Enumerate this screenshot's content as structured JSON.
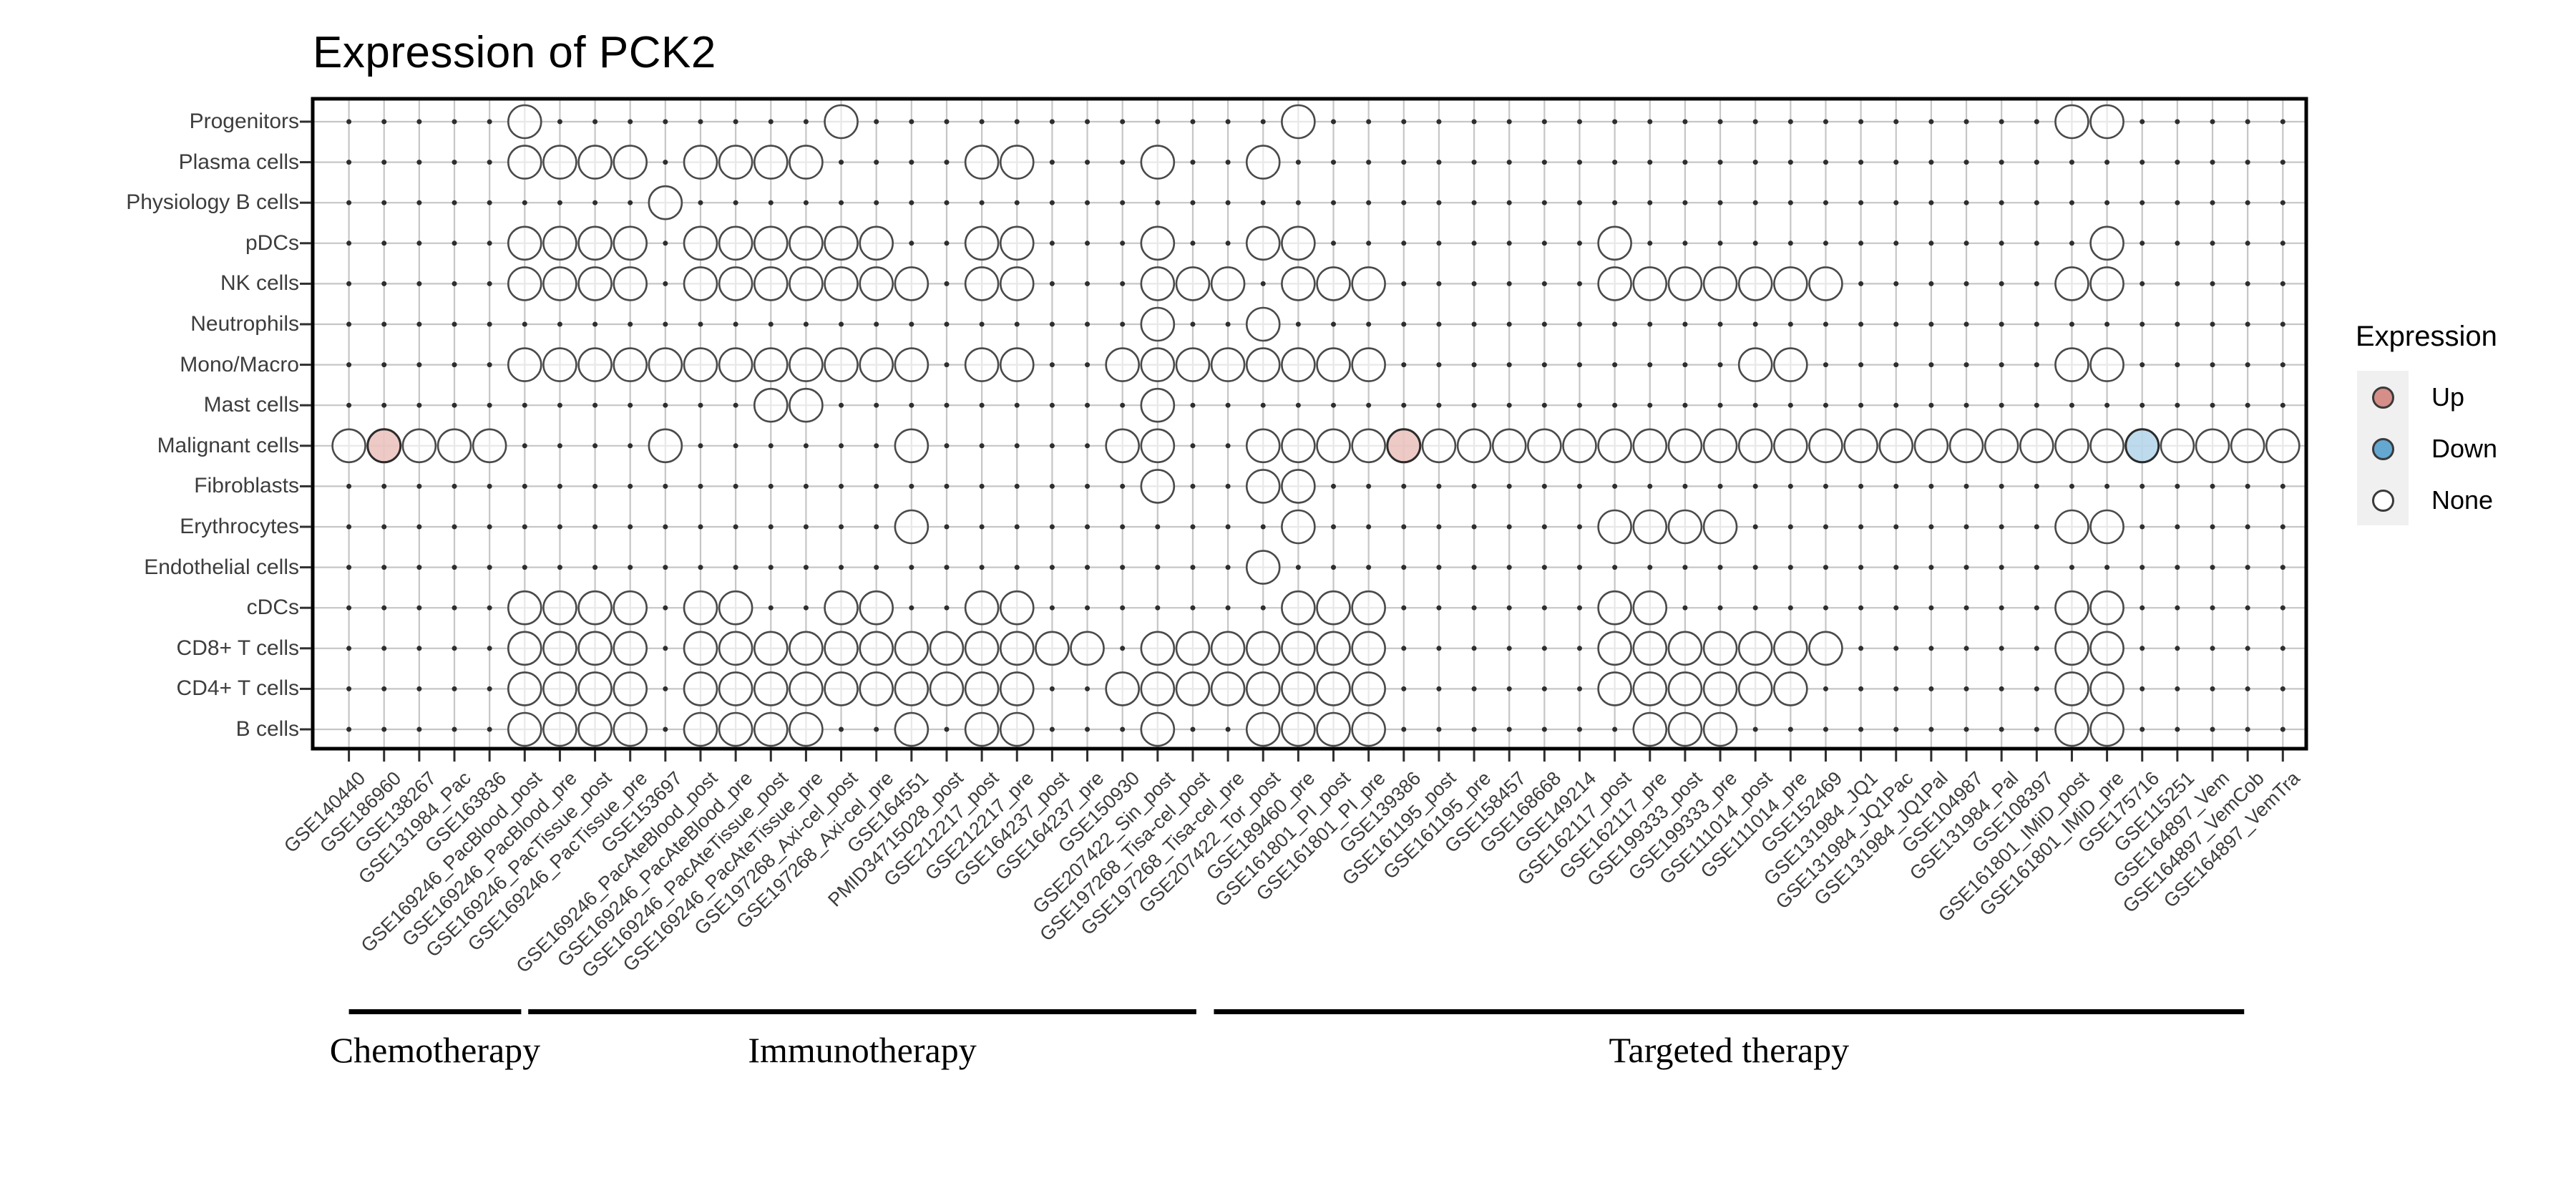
{
  "title": "Expression of PCK2",
  "chart_data": {
    "type": "heatmap",
    "title": "Expression of PCK2",
    "legend": {
      "title": "Expression",
      "entries": [
        {
          "label": "Up",
          "color": "#d58e88"
        },
        {
          "label": "Down",
          "color": "#64a8d2"
        },
        {
          "label": "None",
          "color": "#ffffff"
        }
      ]
    },
    "value_colors": {
      "up": "#ecc4c0",
      "down": "#b6d7ea",
      "none": "#ffffff"
    },
    "rows": [
      "Progenitors",
      "Plasma cells",
      "Physiology B cells",
      "pDCs",
      "NK cells",
      "Neutrophils",
      "Mono/Macro",
      "Mast cells",
      "Malignant cells",
      "Fibroblasts",
      "Erythrocytes",
      "Endothelial cells",
      "cDCs",
      "CD8+ T cells",
      "CD4+ T cells",
      "B cells"
    ],
    "columns": [
      "GSE140440",
      "GSE186960",
      "GSE138267",
      "GSE131984_Pac",
      "GSE163836",
      "GSE169246_PacBlood_post",
      "GSE169246_PacBlood_pre",
      "GSE169246_PacTissue_post",
      "GSE169246_PacTissue_pre",
      "GSE153697",
      "GSE169246_PacAteBlood_post",
      "GSE169246_PacAteBlood_pre",
      "GSE169246_PacAteTissue_post",
      "GSE169246_PacAteTissue_pre",
      "GSE197268_Axi-cel_post",
      "GSE197268_Axi-cel_pre",
      "GSE164551",
      "PMID34715028_post",
      "GSE212217_post",
      "GSE212217_pre",
      "GSE164237_post",
      "GSE164237_pre",
      "GSE150930",
      "GSE207422_Sin_post",
      "GSE197268_Tisa-cel_post",
      "GSE197268_Tisa-cel_pre",
      "GSE207422_Tor_post",
      "GSE189460_pre",
      "GSE161801_PI_post",
      "GSE161801_PI_pre",
      "GSE139386",
      "GSE161195_post",
      "GSE161195_pre",
      "GSE158457",
      "GSE168668",
      "GSE149214",
      "GSE162117_post",
      "GSE162117_pre",
      "GSE199333_post",
      "GSE199333_pre",
      "GSE111014_post",
      "GSE111014_pre",
      "GSE152469",
      "GSE131984_JQ1",
      "GSE131984_JQ1Pac",
      "GSE131984_JQ1Pal",
      "GSE104987",
      "GSE131984_Pal",
      "GSE108397",
      "GSE161801_IMiD_post",
      "GSE161801_IMiD_pre",
      "GSE175716",
      "GSE115251",
      "GSE164897_Vem",
      "GSE164897_VemCob",
      "GSE164897_VemTra"
    ],
    "groups": [
      {
        "label": "Chemotherapy",
        "columns": [
          1,
          5
        ],
        "bar_span": [
          0.0,
          4.9
        ]
      },
      {
        "label": "Immunotherapy",
        "columns": [
          6,
          24
        ],
        "bar_span": [
          5.1,
          24.1
        ]
      },
      {
        "label": "Targeted therapy",
        "columns": [
          25,
          56
        ],
        "bar_span": [
          24.6,
          53.9
        ]
      }
    ],
    "cells": [
      {
        "row": "Progenitors",
        "none": [
          6,
          15,
          28,
          50,
          51
        ],
        "up": [],
        "down": []
      },
      {
        "row": "Plasma cells",
        "none": [
          6,
          7,
          8,
          9,
          11,
          12,
          13,
          14,
          19,
          20,
          24,
          27
        ],
        "up": [],
        "down": []
      },
      {
        "row": "Physiology B cells",
        "none": [
          10
        ],
        "up": [],
        "down": []
      },
      {
        "row": "pDCs",
        "none": [
          6,
          7,
          8,
          9,
          11,
          12,
          13,
          14,
          15,
          16,
          19,
          20,
          24,
          27,
          28,
          37,
          51
        ],
        "up": [],
        "down": []
      },
      {
        "row": "NK cells",
        "none": [
          6,
          7,
          8,
          9,
          11,
          12,
          13,
          14,
          15,
          16,
          17,
          19,
          20,
          24,
          25,
          26,
          28,
          29,
          30,
          37,
          38,
          39,
          40,
          41,
          42,
          43,
          50,
          51
        ],
        "up": [],
        "down": []
      },
      {
        "row": "Neutrophils",
        "none": [
          24,
          27
        ],
        "up": [],
        "down": []
      },
      {
        "row": "Mono/Macro",
        "none": [
          6,
          7,
          8,
          9,
          10,
          11,
          12,
          13,
          14,
          15,
          16,
          17,
          19,
          20,
          23,
          24,
          25,
          26,
          27,
          28,
          29,
          30,
          41,
          42,
          50,
          51
        ],
        "up": [],
        "down": []
      },
      {
        "row": "Mast cells",
        "none": [
          13,
          14,
          24
        ],
        "up": [],
        "down": []
      },
      {
        "row": "Malignant cells",
        "none": [
          1,
          3,
          4,
          5,
          10,
          17,
          23,
          24,
          27,
          28,
          29,
          30,
          32,
          33,
          34,
          35,
          36,
          37,
          38,
          39,
          40,
          41,
          42,
          43,
          44,
          45,
          46,
          47,
          48,
          49,
          50,
          51,
          53,
          54,
          55,
          56
        ],
        "up": [
          2,
          31
        ],
        "down": [
          52
        ]
      },
      {
        "row": "Fibroblasts",
        "none": [
          24,
          27,
          28
        ],
        "up": [],
        "down": []
      },
      {
        "row": "Erythrocytes",
        "none": [
          17,
          28,
          37,
          38,
          39,
          40,
          50,
          51
        ],
        "up": [],
        "down": []
      },
      {
        "row": "Endothelial cells",
        "none": [
          27
        ],
        "up": [],
        "down": []
      },
      {
        "row": "cDCs",
        "none": [
          6,
          7,
          8,
          9,
          11,
          12,
          15,
          16,
          19,
          20,
          28,
          29,
          30,
          37,
          38,
          50,
          51
        ],
        "up": [],
        "down": []
      },
      {
        "row": "CD8+ T cells",
        "none": [
          6,
          7,
          8,
          9,
          11,
          12,
          13,
          14,
          15,
          16,
          17,
          18,
          19,
          20,
          21,
          22,
          24,
          25,
          26,
          27,
          28,
          29,
          30,
          37,
          38,
          39,
          40,
          41,
          42,
          43,
          50,
          51
        ],
        "up": [],
        "down": []
      },
      {
        "row": "CD4+ T cells",
        "none": [
          6,
          7,
          8,
          9,
          11,
          12,
          13,
          14,
          15,
          16,
          17,
          18,
          19,
          20,
          23,
          24,
          25,
          26,
          27,
          28,
          29,
          30,
          37,
          38,
          39,
          40,
          41,
          42,
          50,
          51
        ],
        "up": [],
        "down": []
      },
      {
        "row": "B cells",
        "none": [
          6,
          7,
          8,
          9,
          11,
          12,
          13,
          14,
          17,
          19,
          20,
          24,
          27,
          28,
          29,
          30,
          38,
          39,
          40,
          50,
          51
        ],
        "up": [],
        "down": []
      }
    ]
  }
}
